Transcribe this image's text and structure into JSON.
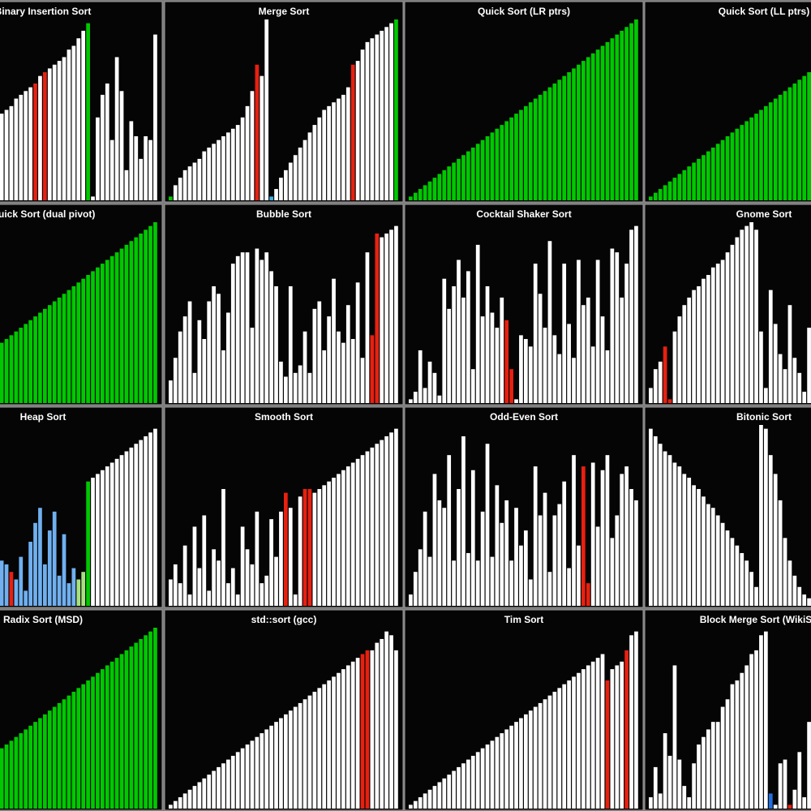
{
  "chart_data": [
    {
      "type": "bar",
      "title": "Binary Insertion Sort",
      "color": "#ffffff",
      "ylim": [
        0,
        48
      ],
      "values": [
        23,
        24,
        25,
        27,
        28,
        29,
        30,
        31,
        33,
        34,
        35,
        36,
        37,
        38,
        40,
        41,
        43,
        45,
        47,
        1,
        22,
        28,
        31,
        16,
        38,
        29,
        8,
        21,
        17,
        11,
        17,
        16,
        44
      ],
      "highlights": [
        {
          "index": 7,
          "color": "#e82010"
        },
        {
          "index": 9,
          "color": "#e82010"
        },
        {
          "index": 18,
          "color": "#00c800"
        }
      ]
    },
    {
      "type": "bar",
      "title": "Merge Sort",
      "color": "#ffffff",
      "ylim": [
        0,
        48
      ],
      "values": [
        1,
        4,
        6,
        8,
        9,
        10,
        11,
        13,
        14,
        15,
        16,
        17,
        18,
        19,
        20,
        22,
        25,
        29,
        36,
        33,
        48,
        1,
        3,
        6,
        8,
        10,
        12,
        14,
        16,
        18,
        20,
        22,
        24,
        25,
        26,
        27,
        28,
        30,
        36,
        37,
        40,
        42,
        43,
        44,
        45,
        46,
        47,
        48
      ],
      "highlights": [
        {
          "index": 0,
          "color": "#00c800"
        },
        {
          "index": 18,
          "color": "#e82010"
        },
        {
          "index": 21,
          "color": "#40b0e0"
        },
        {
          "index": 38,
          "color": "#e82010"
        },
        {
          "index": 47,
          "color": "#00c800"
        }
      ]
    },
    {
      "type": "bar",
      "title": "Quick Sort (LR ptrs)",
      "color": "#00c800",
      "ylim": [
        0,
        48
      ],
      "values": [
        1,
        2,
        3,
        4,
        5,
        6,
        7,
        8,
        9,
        10,
        11,
        12,
        13,
        14,
        15,
        16,
        17,
        18,
        19,
        20,
        21,
        22,
        23,
        24,
        25,
        26,
        27,
        28,
        29,
        30,
        31,
        32,
        33,
        34,
        35,
        36,
        37,
        38,
        39,
        40,
        41,
        42,
        43,
        44,
        45,
        46,
        47,
        48
      ],
      "highlights": []
    },
    {
      "type": "bar",
      "title": "Quick Sort (LL ptrs)",
      "color": "#00c800",
      "ylim": [
        0,
        48
      ],
      "values": [
        1,
        2,
        3,
        4,
        5,
        6,
        7,
        8,
        9,
        10,
        11,
        12,
        13,
        14,
        15,
        16,
        17,
        18,
        19,
        20,
        21,
        22,
        23,
        24,
        25,
        26,
        27,
        28,
        29,
        30,
        31,
        32,
        33,
        34,
        35
      ],
      "highlights": []
    },
    {
      "type": "bar",
      "title": "Quick Sort (dual pivot)",
      "color": "#00c800",
      "ylim": [
        0,
        48
      ],
      "values": [
        16,
        17,
        18,
        19,
        20,
        21,
        22,
        23,
        24,
        25,
        26,
        27,
        28,
        29,
        30,
        31,
        32,
        33,
        34,
        35,
        36,
        37,
        38,
        39,
        40,
        41,
        42,
        43,
        44,
        45,
        46,
        47,
        48
      ],
      "highlights": []
    },
    {
      "type": "bar",
      "title": "Bubble Sort",
      "color": "#ffffff",
      "ylim": [
        0,
        48
      ],
      "values": [
        6,
        12,
        19,
        23,
        27,
        8,
        22,
        17,
        27,
        31,
        29,
        14,
        24,
        37,
        39,
        40,
        40,
        20,
        41,
        38,
        40,
        35,
        31,
        11,
        7,
        31,
        8,
        10,
        19,
        8,
        25,
        27,
        14,
        23,
        33,
        19,
        16,
        26,
        17,
        32,
        12,
        40,
        18,
        45,
        44,
        45,
        46,
        47
      ],
      "highlights": [
        {
          "index": 42,
          "color": "#e82010"
        },
        {
          "index": 43,
          "color": "#e82010"
        }
      ]
    },
    {
      "type": "bar",
      "title": "Cocktail Shaker Sort",
      "color": "#ffffff",
      "ylim": [
        0,
        48
      ],
      "values": [
        1,
        3,
        14,
        4,
        11,
        8,
        2,
        33,
        25,
        31,
        38,
        28,
        35,
        9,
        42,
        23,
        31,
        24,
        20,
        28,
        22,
        9,
        1,
        18,
        17,
        15,
        37,
        29,
        20,
        43,
        18,
        13,
        37,
        21,
        12,
        38,
        26,
        28,
        15,
        38,
        23,
        14,
        41,
        40,
        28,
        37,
        46,
        47
      ],
      "highlights": [
        {
          "index": 20,
          "color": "#e82010"
        },
        {
          "index": 21,
          "color": "#e82010"
        }
      ]
    },
    {
      "type": "bar",
      "title": "Gnome Sort",
      "color": "#ffffff",
      "ylim": [
        0,
        48
      ],
      "values": [
        4,
        9,
        11,
        15,
        1,
        19,
        23,
        26,
        28,
        30,
        31,
        33,
        34,
        36,
        37,
        38,
        40,
        42,
        44,
        46,
        47,
        48,
        46,
        19,
        4,
        30,
        21,
        13,
        9,
        26,
        12,
        8,
        3,
        20,
        6
      ],
      "highlights": [
        {
          "index": 3,
          "color": "#e82010"
        },
        {
          "index": 4,
          "color": "#e82010"
        }
      ]
    },
    {
      "type": "bar",
      "title": "Heap Sort",
      "color": "#ffffff",
      "ylim": [
        0,
        48
      ],
      "values": [
        12,
        11,
        9,
        7,
        13,
        4,
        17,
        22,
        26,
        11,
        20,
        25,
        8,
        19,
        6,
        10,
        7,
        9,
        33,
        34,
        35,
        36,
        37,
        38,
        39,
        40,
        41,
        42,
        43,
        44,
        45,
        46,
        47
      ],
      "highlights": [
        {
          "index": 0,
          "color": "#70b0f0"
        },
        {
          "index": 1,
          "color": "#70b0f0"
        },
        {
          "index": 2,
          "color": "#e82010"
        },
        {
          "index": 3,
          "color": "#70b0f0"
        },
        {
          "index": 4,
          "color": "#70b0f0"
        },
        {
          "index": 5,
          "color": "#70b0f0"
        },
        {
          "index": 6,
          "color": "#70b0f0"
        },
        {
          "index": 7,
          "color": "#70b0f0"
        },
        {
          "index": 8,
          "color": "#70b0f0"
        },
        {
          "index": 9,
          "color": "#70b0f0"
        },
        {
          "index": 10,
          "color": "#70b0f0"
        },
        {
          "index": 11,
          "color": "#70b0f0"
        },
        {
          "index": 12,
          "color": "#70b0f0"
        },
        {
          "index": 13,
          "color": "#70b0f0"
        },
        {
          "index": 14,
          "color": "#70b0f0"
        },
        {
          "index": 15,
          "color": "#70b0f0"
        },
        {
          "index": 16,
          "color": "#a8e080"
        },
        {
          "index": 17,
          "color": "#a8e080"
        },
        {
          "index": 18,
          "color": "#00c800"
        }
      ]
    },
    {
      "type": "bar",
      "title": "Smooth Sort",
      "color": "#ffffff",
      "ylim": [
        0,
        48
      ],
      "values": [
        7,
        11,
        6,
        16,
        3,
        21,
        10,
        24,
        4,
        15,
        12,
        31,
        6,
        10,
        3,
        21,
        15,
        11,
        25,
        6,
        8,
        23,
        13,
        25,
        30,
        26,
        3,
        29,
        31,
        31,
        30,
        31,
        32,
        33,
        34,
        35,
        36,
        37,
        38,
        39,
        40,
        41,
        42,
        43,
        44,
        45,
        46,
        47
      ],
      "highlights": [
        {
          "index": 24,
          "color": "#e82010"
        },
        {
          "index": 28,
          "color": "#e82010"
        },
        {
          "index": 29,
          "color": "#e82010"
        }
      ]
    },
    {
      "type": "bar",
      "title": "Odd-Even Sort",
      "color": "#ffffff",
      "ylim": [
        0,
        48
      ],
      "values": [
        3,
        9,
        15,
        25,
        13,
        35,
        28,
        26,
        40,
        12,
        31,
        45,
        14,
        36,
        12,
        25,
        43,
        13,
        32,
        22,
        28,
        12,
        26,
        16,
        20,
        7,
        37,
        24,
        30,
        9,
        24,
        27,
        33,
        10,
        40,
        16,
        37,
        6,
        38,
        21,
        36,
        40,
        18,
        24,
        35,
        37,
        31,
        28
      ],
      "highlights": [
        {
          "index": 36,
          "color": "#e82010"
        },
        {
          "index": 37,
          "color": "#e82010"
        }
      ]
    },
    {
      "type": "bar",
      "title": "Bitonic Sort",
      "color": "#ffffff",
      "ylim": [
        0,
        48
      ],
      "values": [
        47,
        45,
        43,
        41,
        40,
        38,
        37,
        35,
        34,
        32,
        31,
        29,
        27,
        26,
        24,
        22,
        20,
        18,
        16,
        14,
        12,
        9,
        5,
        48,
        47,
        40,
        35,
        28,
        18,
        12,
        8,
        5,
        3,
        2,
        1
      ],
      "highlights": []
    },
    {
      "type": "bar",
      "title": "Radix Sort (MSD)",
      "color": "#00c800",
      "ylim": [
        0,
        48
      ],
      "values": [
        16,
        17,
        18,
        19,
        20,
        21,
        22,
        23,
        24,
        25,
        26,
        27,
        28,
        29,
        30,
        31,
        32,
        33,
        34,
        35,
        36,
        37,
        38,
        39,
        40,
        41,
        42,
        43,
        44,
        45,
        46,
        47,
        48
      ],
      "highlights": []
    },
    {
      "type": "bar",
      "title": "std::sort (gcc)",
      "color": "#ffffff",
      "ylim": [
        0,
        48
      ],
      "values": [
        1,
        2,
        3,
        4,
        5,
        6,
        7,
        8,
        9,
        10,
        11,
        12,
        13,
        14,
        15,
        16,
        17,
        18,
        19,
        20,
        21,
        22,
        23,
        24,
        25,
        26,
        27,
        28,
        29,
        30,
        31,
        32,
        33,
        34,
        35,
        36,
        37,
        38,
        39,
        40,
        41,
        42,
        42,
        44,
        45,
        47,
        46,
        42
      ],
      "highlights": [
        {
          "index": 40,
          "color": "#e82010"
        },
        {
          "index": 41,
          "color": "#e82010"
        }
      ]
    },
    {
      "type": "bar",
      "title": "Tim Sort",
      "color": "#ffffff",
      "ylim": [
        0,
        48
      ],
      "values": [
        1,
        2,
        3,
        4,
        5,
        6,
        7,
        8,
        9,
        10,
        11,
        12,
        13,
        14,
        15,
        16,
        17,
        18,
        19,
        20,
        21,
        22,
        23,
        24,
        25,
        26,
        27,
        28,
        29,
        30,
        31,
        32,
        33,
        34,
        35,
        36,
        37,
        38,
        39,
        40,
        41,
        34,
        37,
        38,
        39,
        42,
        46,
        47
      ],
      "highlights": [
        {
          "index": 41,
          "color": "#e82010"
        },
        {
          "index": 45,
          "color": "#e82010"
        }
      ]
    },
    {
      "type": "bar",
      "title": "Block Merge Sort (WikiSort)",
      "color": "#ffffff",
      "ylim": [
        0,
        48
      ],
      "values": [
        3,
        11,
        4,
        20,
        14,
        38,
        13,
        6,
        3,
        12,
        17,
        19,
        21,
        23,
        23,
        27,
        29,
        33,
        34,
        36,
        38,
        41,
        42,
        46,
        47,
        4,
        1,
        12,
        13,
        1,
        5,
        15,
        3,
        23,
        32
      ],
      "highlights": [
        {
          "index": 25,
          "color": "#2070e0"
        },
        {
          "index": 29,
          "color": "#e82010"
        }
      ]
    }
  ]
}
